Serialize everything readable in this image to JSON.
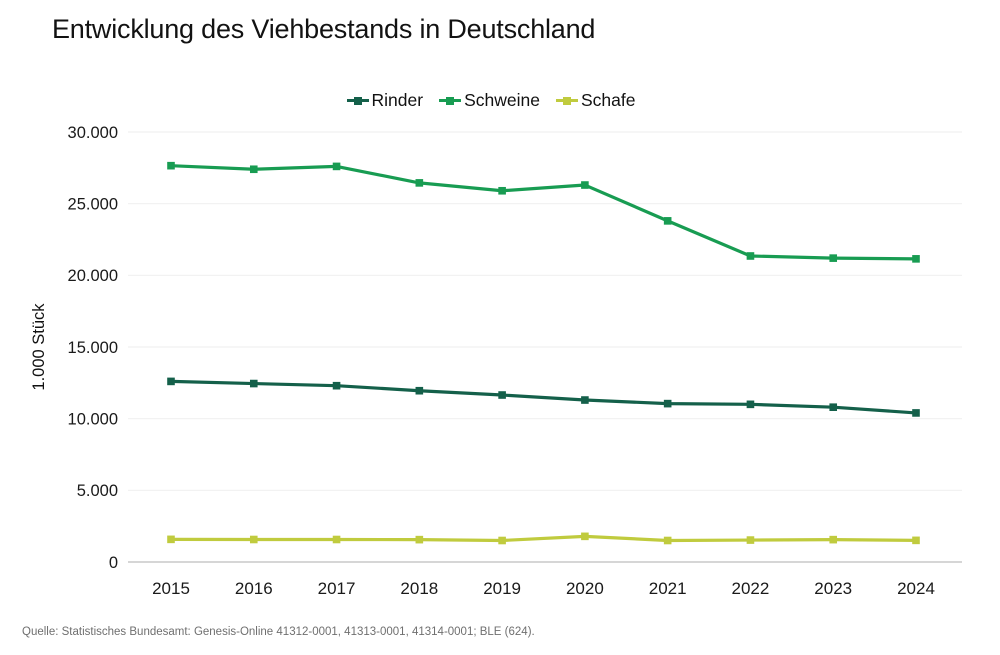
{
  "header": {
    "title": "Entwicklung des Viehbestands in Deutschland"
  },
  "footer": {
    "source": "Quelle: Statistisches Bundesamt: Genesis-Online 41312-0001, 41313-0001, 41314-0001; BLE (624)."
  },
  "chart_data": {
    "type": "line",
    "title": "Entwicklung des Viehbestands in Deutschland",
    "xlabel": "",
    "ylabel": "1.000 Stück",
    "categories": [
      "2015",
      "2016",
      "2017",
      "2018",
      "2019",
      "2020",
      "2021",
      "2022",
      "2023",
      "2024"
    ],
    "series": [
      {
        "name": "Rinder",
        "color": "#14604a",
        "marker": "square",
        "values": [
          12600,
          12450,
          12300,
          11950,
          11650,
          11300,
          11050,
          11000,
          10800,
          10400
        ]
      },
      {
        "name": "Schweine",
        "color": "#189c52",
        "marker": "square",
        "values": [
          27650,
          27400,
          27600,
          26450,
          25900,
          26300,
          23800,
          21350,
          21200,
          21150
        ]
      },
      {
        "name": "Schafe",
        "color": "#c0cb3e",
        "marker": "square",
        "values": [
          1580,
          1570,
          1570,
          1560,
          1500,
          1790,
          1500,
          1530,
          1560,
          1510
        ]
      }
    ],
    "ylim": [
      0,
      30000
    ],
    "y_ticks": [
      {
        "value": 0,
        "label": "0"
      },
      {
        "value": 5000,
        "label": "5.000"
      },
      {
        "value": 10000,
        "label": "10.000"
      },
      {
        "value": 15000,
        "label": "15.000"
      },
      {
        "value": 20000,
        "label": "20.000"
      },
      {
        "value": 25000,
        "label": "25.000"
      },
      {
        "value": 30000,
        "label": "30.000"
      }
    ],
    "grid": "horizontal",
    "legend_position": "top-center"
  }
}
